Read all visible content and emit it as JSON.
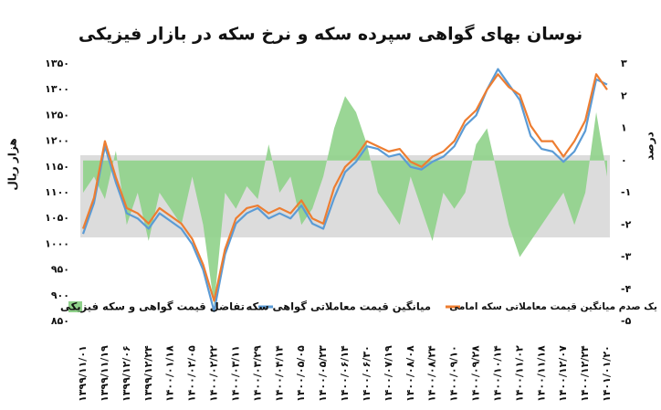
{
  "chart_data": {
    "type": "line",
    "title": "نوسان بهای گواهی سپرده سکه و نرخ سکه در بازار فیزیکی",
    "y_label": "هزار ریال",
    "y2_label": "درصد",
    "categories": [
      "۱۳۹۹/۱۱/۰۱",
      null,
      "۱۳۹۹/۱۱/۱۹",
      null,
      "۱۳۹۹/۱۲/۰۶",
      null,
      "۱۳۹۹/۱۲/۲۴",
      null,
      "۱۴۰۰/۰۱/۱۸",
      null,
      "۱۴۰۰/۰۲/۰۵",
      null,
      "۱۴۰۰/۰۲/۲۲",
      null,
      "۱۴۰۰/۰۳/۱۱",
      null,
      "۱۴۰۰/۰۳/۲۹",
      null,
      "۱۴۰۰/۰۴/۱۴",
      null,
      "۱۴۰۰/۰۵/۰۵",
      null,
      "۱۴۰۰/۰۵/۲۳",
      null,
      "۱۴۰۰/۰۶/۱۴",
      null,
      "۱۴۰۰/۰۶/۳۰",
      null,
      "۱۴۰۰/۰۷/۱۹",
      null,
      "۱۴۰۰/۰۸/۰۸",
      null,
      "۱۴۰۰/۰۸/۲۴",
      null,
      "۱۴۰۰/۰۹/۱۰",
      null,
      "۱۴۰۰/۰۹/۲۸",
      null,
      "۱۴۰۰/۱۰/۱۴",
      null,
      "۱۴۰۰/۱۱/۰۲",
      null,
      "۱۴۰۰/۱۱/۱۸",
      null,
      "۱۴۰۰/۱۲/۰۷",
      null,
      "۱۴۰۰/۱۲/۲۴",
      null,
      "۱۴۰۱/۰۱/۲۰"
    ],
    "series": [
      {
        "name": "تفاضل قیمت گواهی و سکه فیزیکی",
        "type": "area",
        "axis": "y2",
        "color": "#8fd18a",
        "values": [
          -1,
          -0.5,
          -1.2,
          0.3,
          -2,
          -1,
          -2.5,
          -1,
          -1.5,
          -2,
          -0.5,
          -2,
          -4.5,
          -1,
          -1.5,
          -0.8,
          -1.2,
          0.5,
          -1,
          -0.5,
          -2,
          -1.5,
          -0.5,
          1,
          2,
          1.5,
          0.5,
          -1,
          -1.5,
          -2,
          -0.5,
          -1.5,
          -2.5,
          -1,
          -1.5,
          -1,
          0.5,
          1,
          -0.5,
          -2,
          -3,
          -2.5,
          -2,
          -1.5,
          -1,
          -2,
          -1,
          1.5,
          -0.5
        ]
      },
      {
        "name": "میانگین قیمت معاملاتی گواهی سکه",
        "type": "line",
        "color": "#5b9bd5",
        "values": [
          1020,
          1080,
          1190,
          1120,
          1060,
          1050,
          1030,
          1060,
          1045,
          1030,
          1000,
          950,
          870,
          980,
          1040,
          1060,
          1070,
          1050,
          1060,
          1050,
          1075,
          1040,
          1030,
          1090,
          1140,
          1160,
          1190,
          1185,
          1170,
          1175,
          1150,
          1145,
          1160,
          1170,
          1190,
          1230,
          1250,
          1300,
          1340,
          1310,
          1280,
          1210,
          1185,
          1180,
          1160,
          1180,
          1220,
          1320,
          1310
        ]
      },
      {
        "name": "یک صدم میانگین قیمت معاملاتی سکه امامی",
        "type": "line",
        "color": "#ed7d31",
        "values": [
          1030,
          1090,
          1200,
          1130,
          1070,
          1060,
          1040,
          1070,
          1055,
          1040,
          1010,
          960,
          890,
          990,
          1050,
          1070,
          1075,
          1060,
          1070,
          1060,
          1085,
          1050,
          1040,
          1110,
          1150,
          1170,
          1200,
          1190,
          1180,
          1185,
          1160,
          1150,
          1170,
          1180,
          1200,
          1240,
          1260,
          1300,
          1330,
          1305,
          1290,
          1230,
          1200,
          1200,
          1170,
          1200,
          1240,
          1330,
          1300
        ]
      }
    ],
    "ylim": [
      850,
      1350
    ],
    "yticks": [
      {
        "value": 850,
        "label": "۸۵۰"
      },
      {
        "value": 900,
        "label": "۹۰۰"
      },
      {
        "value": 950,
        "label": "۹۵۰"
      },
      {
        "value": 1000,
        "label": "۱۰۰۰"
      },
      {
        "value": 1050,
        "label": "۱۰۵۰"
      },
      {
        "value": 1100,
        "label": "۱۱۰۰"
      },
      {
        "value": 1150,
        "label": "۱۱۵۰"
      },
      {
        "value": 1200,
        "label": "۱۲۰۰"
      },
      {
        "value": 1250,
        "label": "۱۲۵۰"
      },
      {
        "value": 1300,
        "label": "۱۳۰۰"
      },
      {
        "value": 1350,
        "label": "۱۳۵۰"
      }
    ],
    "y2lim": [
      -5,
      3
    ],
    "y2ticks": [
      {
        "value": -5,
        "label": "-۵"
      },
      {
        "value": -4,
        "label": "-۴"
      },
      {
        "value": -3,
        "label": "-۳"
      },
      {
        "value": -2,
        "label": "-۲"
      },
      {
        "value": -1,
        "label": "-۱"
      },
      {
        "value": 0,
        "label": "۰"
      },
      {
        "value": 1,
        "label": "۱"
      },
      {
        "value": 2,
        "label": "۲"
      },
      {
        "value": 3,
        "label": "۳"
      }
    ],
    "legend": "bottom",
    "grid": false
  }
}
